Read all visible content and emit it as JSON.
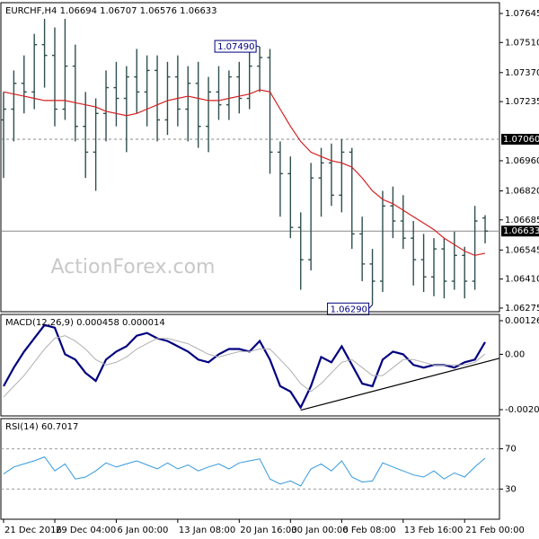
{
  "chart_data": [
    {
      "type": "ohlc",
      "title": "EURCHF,H4 1.06694 1.06707 1.06576 1.06633",
      "watermark": "ActionForex.com",
      "xlim": [
        -0.26,
        48.4
      ],
      "ylim": [
        1.06258,
        1.07695
      ],
      "yticks": [
        {
          "value": 1.07645,
          "label": "1.07645"
        },
        {
          "value": 1.0751,
          "label": "1.07510"
        },
        {
          "value": 1.0737,
          "label": "1.07370"
        },
        {
          "value": 1.07235,
          "label": "1.07235"
        },
        {
          "value": 1.0696,
          "label": "1.06960"
        },
        {
          "value": 1.0682,
          "label": "1.06820"
        },
        {
          "value": 1.06685,
          "label": "1.06685"
        },
        {
          "value": 1.06545,
          "label": "1.06545"
        },
        {
          "value": 1.0641,
          "label": "1.06410"
        },
        {
          "value": 1.06275,
          "label": "1.06275"
        }
      ],
      "ohlc": {
        "color": "#2f4f4f",
        "open": [
          1.0715,
          1.072,
          1.0732,
          1.0728,
          1.075,
          1.0745,
          1.072,
          1.074,
          1.0712,
          1.07,
          1.0718,
          1.073,
          1.0725,
          1.0735,
          1.0728,
          1.0738,
          1.0715,
          1.0735,
          1.072,
          1.0732,
          1.0712,
          1.0728,
          1.0722,
          1.0735,
          1.0725,
          1.074,
          1.0744,
          1.07,
          1.069,
          1.0665,
          1.065,
          1.0688,
          1.0695,
          1.068,
          1.07,
          1.0662,
          1.0648,
          1.064,
          1.0675,
          1.0668,
          1.066,
          1.065,
          1.0642,
          1.0655,
          1.064,
          1.0652,
          1.064,
          1.06694
        ],
        "high": [
          1.0728,
          1.0738,
          1.0745,
          1.0755,
          1.0762,
          1.0758,
          1.0762,
          1.075,
          1.0728,
          1.0725,
          1.0738,
          1.0742,
          1.074,
          1.0748,
          1.0745,
          1.0745,
          1.0742,
          1.0745,
          1.074,
          1.0742,
          1.0735,
          1.074,
          1.0738,
          1.0742,
          1.0748,
          1.0749,
          1.0748,
          1.0705,
          1.0698,
          1.0672,
          1.0695,
          1.0702,
          1.0704,
          1.0706,
          1.0702,
          1.067,
          1.0655,
          1.0682,
          1.0684,
          1.068,
          1.0668,
          1.0662,
          1.066,
          1.066,
          1.0663,
          1.0656,
          1.0675,
          1.06707
        ],
        "low": [
          1.0688,
          1.0705,
          1.0718,
          1.072,
          1.073,
          1.0712,
          1.0715,
          1.0705,
          1.0688,
          1.0682,
          1.0705,
          1.0712,
          1.07,
          1.0718,
          1.0712,
          1.0705,
          1.0708,
          1.0712,
          1.0705,
          1.0702,
          1.07,
          1.0715,
          1.0715,
          1.0718,
          1.072,
          1.0728,
          1.069,
          1.067,
          1.066,
          1.0636,
          1.0645,
          1.067,
          1.0675,
          1.0672,
          1.0655,
          1.064,
          1.0629,
          1.0635,
          1.066,
          1.0655,
          1.0638,
          1.0635,
          1.0633,
          1.0632,
          1.0636,
          1.0632,
          1.0636,
          1.06576
        ],
        "close": [
          1.072,
          1.0732,
          1.0728,
          1.075,
          1.0745,
          1.072,
          1.074,
          1.0712,
          1.07,
          1.0718,
          1.073,
          1.0725,
          1.0735,
          1.0728,
          1.0738,
          1.0715,
          1.0735,
          1.072,
          1.0732,
          1.0712,
          1.0728,
          1.0722,
          1.0735,
          1.0725,
          1.074,
          1.0744,
          1.07,
          1.069,
          1.0665,
          1.065,
          1.0688,
          1.0695,
          1.068,
          1.07,
          1.0662,
          1.0648,
          1.064,
          1.0675,
          1.0668,
          1.066,
          1.065,
          1.0642,
          1.0655,
          1.064,
          1.0652,
          1.064,
          1.0668,
          1.06633
        ]
      },
      "series": [
        {
          "color": "#d42020",
          "values": [
            1.0728,
            1.0727,
            1.0726,
            1.0725,
            1.0724,
            1.0724,
            1.0724,
            1.0723,
            1.0722,
            1.0721,
            1.0719,
            1.0718,
            1.0717,
            1.0718,
            1.072,
            1.0722,
            1.0724,
            1.0725,
            1.0726,
            1.0725,
            1.0724,
            1.0724,
            1.0725,
            1.0726,
            1.0727,
            1.0729,
            1.0728,
            1.072,
            1.0712,
            1.0705,
            1.07,
            1.0698,
            1.0696,
            1.0695,
            1.0693,
            1.0688,
            1.0682,
            1.0678,
            1.0676,
            1.0673,
            1.067,
            1.0667,
            1.0664,
            1.066,
            1.0657,
            1.0654,
            1.0652,
            1.0653
          ]
        }
      ],
      "hlines": [
        {
          "value": 1.0706,
          "label": "1.07060",
          "style": "dashed"
        },
        {
          "value": 1.06633,
          "label": "1.06633",
          "style": "solid"
        }
      ],
      "annotations": [
        {
          "x": 25,
          "value": 1.0749,
          "label": "1.07490"
        },
        {
          "x": 36,
          "value": 1.0629,
          "label": "1.06290"
        }
      ]
    },
    {
      "type": "line",
      "title": "MACD(12,26,9) 0.000458 0.000014",
      "xlim": [
        -0.26,
        48.4
      ],
      "ylim": [
        -0.002316,
        0.001499
      ],
      "yticks": [
        0.001263,
        {
          "value": 0,
          "label": "0.00"
        },
        -0.00208
      ],
      "series": [
        {
          "color": "#000080",
          "width": 2.2,
          "values": [
            -0.0012,
            -0.0005,
            0.0001,
            0.0006,
            0.0011,
            0.001,
            0.0,
            -0.0002,
            -0.0007,
            -0.001,
            -0.0002,
            0.0001,
            0.0003,
            0.0007,
            0.0008,
            0.0006,
            0.0005,
            0.0003,
            0.0001,
            -0.0002,
            -0.0003,
            0.0,
            0.0002,
            0.0002,
            0.0001,
            0.0005,
            -0.0002,
            -0.0012,
            -0.0014,
            -0.002,
            -0.0012,
            -0.0001,
            -0.0003,
            0.0003,
            -0.0004,
            -0.0011,
            -0.0012,
            -0.0002,
            0.0001,
            0.0,
            -0.0004,
            -0.0005,
            -0.0004,
            -0.0004,
            -0.0005,
            -0.0003,
            -0.0002,
            0.000458
          ]
        },
        {
          "color": "#b0b0b0",
          "width": 1,
          "values": [
            -0.0016,
            -0.0012,
            -0.0008,
            -0.0003,
            0.0002,
            0.0006,
            0.0007,
            0.0005,
            0.0002,
            -0.0002,
            -0.0004,
            -0.0003,
            -0.0001,
            0.0002,
            0.0004,
            0.0006,
            0.0006,
            0.0005,
            0.0004,
            0.0002,
            0.0,
            -0.0001,
            0.0,
            0.0001,
            0.0001,
            0.0002,
            0.0002,
            -0.0002,
            -0.0006,
            -0.0011,
            -0.0014,
            -0.0011,
            -0.0007,
            -0.0003,
            -0.0002,
            -0.0005,
            -0.0008,
            -0.0008,
            -0.0005,
            -0.0002,
            -0.0002,
            -0.0003,
            -0.0004,
            -0.0004,
            -0.0004,
            -0.0004,
            -0.0003,
            1.4e-05
          ]
        }
      ],
      "trendline": {
        "color": "#000000",
        "x": [
          29,
          48.4
        ],
        "values": [
          -0.0021,
          -0.00015
        ]
      }
    },
    {
      "type": "line",
      "title": "RSI(14) 60.7017",
      "xlim": [
        -0.26,
        48.4
      ],
      "ylim": [
        0,
        100
      ],
      "yticks": [
        70,
        30
      ],
      "grid": true,
      "xticks": [
        {
          "value": 0,
          "label": "21 Dec 2016"
        },
        {
          "value": 5,
          "label": "29 Dec 04:00"
        },
        {
          "value": 11,
          "label": "6 Jan 00:00"
        },
        {
          "value": 17,
          "label": "13 Jan 08:00"
        },
        {
          "value": 23,
          "label": "20 Jan 16:00"
        },
        {
          "value": 28,
          "label": "30 Jan 00:00"
        },
        {
          "value": 33,
          "label": "6 Feb 08:00"
        },
        {
          "value": 39,
          "label": "13 Feb 16:00"
        },
        {
          "value": 45,
          "label": "21 Feb 00:00"
        }
      ],
      "series": [
        {
          "color": "#3399dd",
          "width": 1,
          "values": [
            45,
            52,
            55,
            58,
            62,
            48,
            55,
            40,
            42,
            48,
            56,
            52,
            55,
            58,
            54,
            50,
            56,
            50,
            54,
            48,
            52,
            55,
            50,
            56,
            58,
            60,
            40,
            35,
            38,
            33,
            50,
            55,
            48,
            58,
            42,
            37,
            38,
            56,
            52,
            48,
            44,
            42,
            48,
            40,
            46,
            42,
            52,
            60.7017
          ]
        }
      ]
    }
  ]
}
